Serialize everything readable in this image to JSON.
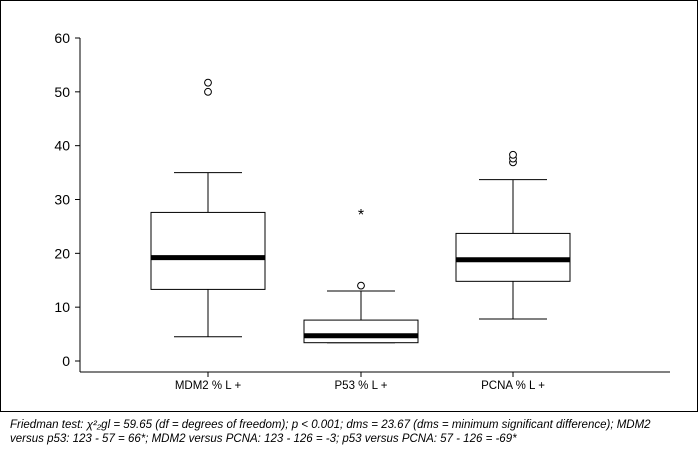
{
  "chart_data": {
    "type": "box",
    "title": "",
    "xlabel": "",
    "ylabel": "",
    "ylim": [
      0,
      60
    ],
    "yticks": [
      0,
      10,
      20,
      30,
      40,
      50,
      60
    ],
    "categories": [
      "MDM2 % L +",
      "P53 % L +",
      "PCNA % L +"
    ],
    "series": [
      {
        "category": "MDM2 % L +",
        "whisker_low": 4.5,
        "q1": 13.3,
        "median": 19.2,
        "q3": 27.6,
        "whisker_high": 35.0,
        "outliers": [
          50.0,
          51.7
        ],
        "extremes": []
      },
      {
        "category": "P53 % L +",
        "whisker_low": 3.4,
        "q1": 3.4,
        "median": 4.7,
        "q3": 7.6,
        "whisker_high": 13.0,
        "outliers": [
          14.0
        ],
        "extremes": [
          27.5
        ]
      },
      {
        "category": "PCNA % L +",
        "whisker_low": 7.8,
        "q1": 14.8,
        "median": 18.8,
        "q3": 23.7,
        "whisker_high": 33.7,
        "outliers": [
          36.9,
          37.6,
          38.3
        ],
        "extremes": []
      }
    ],
    "grid": false,
    "legend": "none",
    "color": "#000000"
  },
  "caption": {
    "line1": "Friedman test: χ²₂gl = 59.65 (df = degrees of freedom); p < 0.001; dms = 23.67 (dms = minimum significant difference); MDM2",
    "line2": "versus p53: 123 - 57 = 66*; MDM2 versus PCNA: 123 - 126 = -3; p53 versus PCNA: 57 - 126 = -69*"
  }
}
